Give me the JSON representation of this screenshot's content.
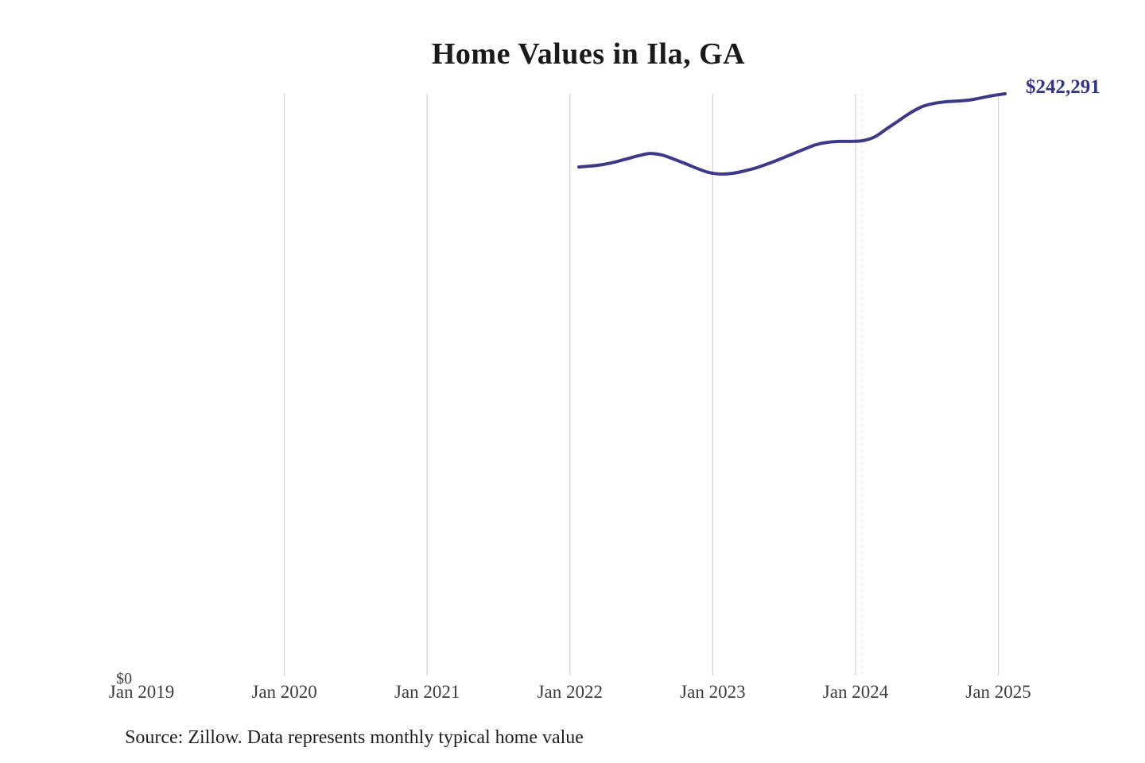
{
  "chart_data": {
    "type": "line",
    "title": "Home Values in Ila, GA",
    "x_tick_labels": [
      "Jan 2019",
      "Jan 2020",
      "Jan 2021",
      "Jan 2022",
      "Jan 2023",
      "Jan 2024",
      "Jan 2025"
    ],
    "gridline_ticks": [
      "Jan 2020",
      "Jan 2021",
      "Jan 2022",
      "Jan 2023",
      "Jan 2024",
      "Jan 2025"
    ],
    "y_zero_label": "$0",
    "ylim": [
      0,
      242291
    ],
    "xlabel": "",
    "ylabel": "",
    "grid": "vertical-only",
    "legend": "none",
    "series": [
      {
        "name": "Typical home value",
        "x_start": "Feb 2022",
        "x_end": "Feb 2025",
        "interval": "monthly",
        "values": [
          212000,
          212400,
          213000,
          214000,
          215300,
          216600,
          217600,
          217000,
          215300,
          213400,
          211400,
          209700,
          209100,
          209400,
          210400,
          211700,
          213400,
          215300,
          217300,
          219300,
          221200,
          222200,
          222600,
          222600,
          222900,
          224500,
          227800,
          231100,
          234400,
          237000,
          238300,
          239000,
          239300,
          239700,
          240600,
          241600,
          242291
        ]
      }
    ],
    "end_label": "$242,291",
    "source_note": "Source: Zillow. Data represents monthly typical home value",
    "colors": {
      "line": "#3e3889",
      "end_label": "#333380",
      "gridline": "#cfcfcf",
      "dashed_marker": "#e8e8e8",
      "axis_text": "#3d3d3d",
      "title_text": "#1a1a1a",
      "source_text": "#1f1f1f",
      "background": "#ffffff"
    }
  }
}
